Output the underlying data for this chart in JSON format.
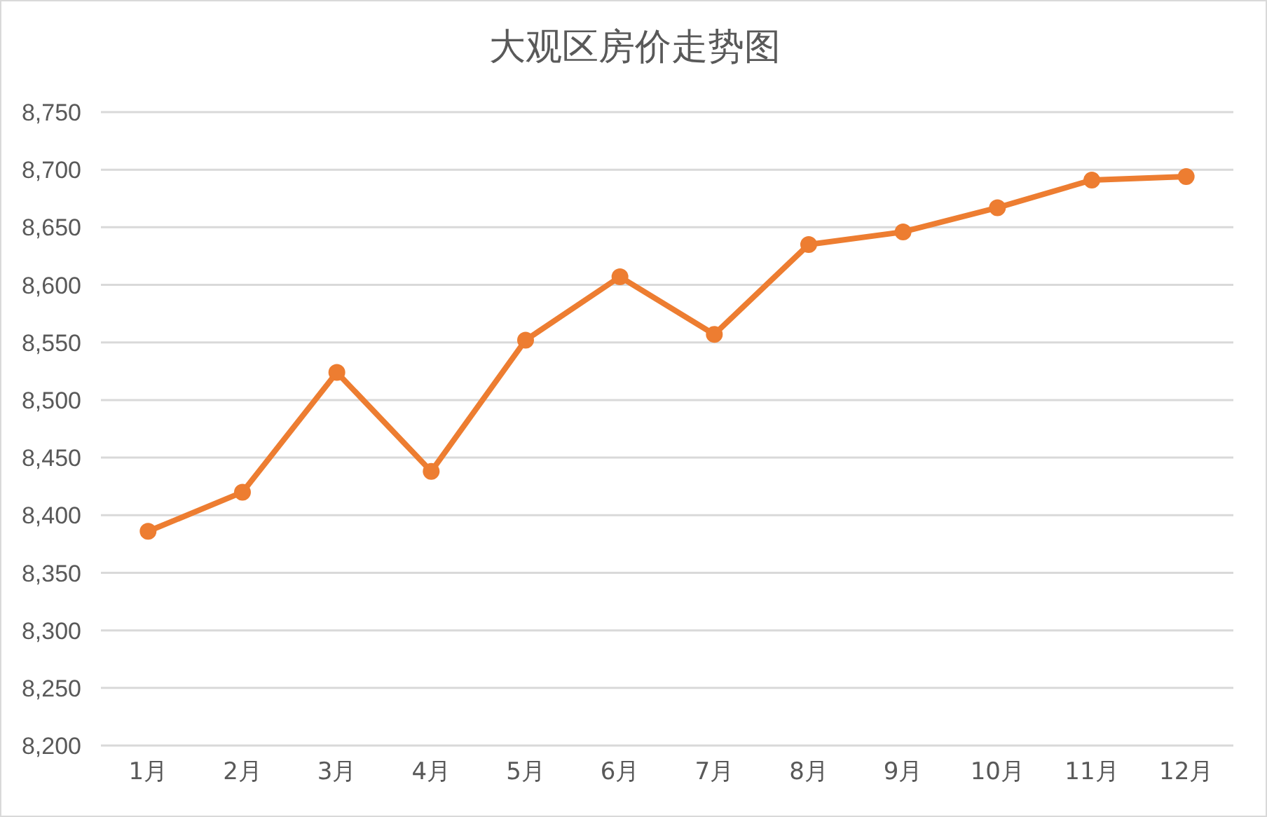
{
  "chart_data": {
    "type": "line",
    "title": "大观区房价走势图",
    "categories": [
      "1月",
      "2月",
      "3月",
      "4月",
      "5月",
      "6月",
      "7月",
      "8月",
      "9月",
      "10月",
      "11月",
      "12月"
    ],
    "series": [
      {
        "color": "#ed7d31",
        "values": [
          8386,
          8420,
          8524,
          8438,
          8552,
          8607,
          8557,
          8635,
          8646,
          8667,
          8691,
          8694
        ]
      }
    ],
    "ylim": [
      8200,
      8750
    ],
    "yticks": [
      {
        "value": 8200,
        "label": "8,200"
      },
      {
        "value": 8250,
        "label": "8,250"
      },
      {
        "value": 8300,
        "label": "8,300"
      },
      {
        "value": 8350,
        "label": "8,350"
      },
      {
        "value": 8400,
        "label": "8,400"
      },
      {
        "value": 8450,
        "label": "8,450"
      },
      {
        "value": 8500,
        "label": "8,500"
      },
      {
        "value": 8550,
        "label": "8,550"
      },
      {
        "value": 8600,
        "label": "8,600"
      },
      {
        "value": 8650,
        "label": "8,650"
      },
      {
        "value": 8700,
        "label": "8,700"
      },
      {
        "value": 8750,
        "label": "8,750"
      }
    ],
    "grid": "y",
    "marker": "circle",
    "line_style": "solid"
  }
}
